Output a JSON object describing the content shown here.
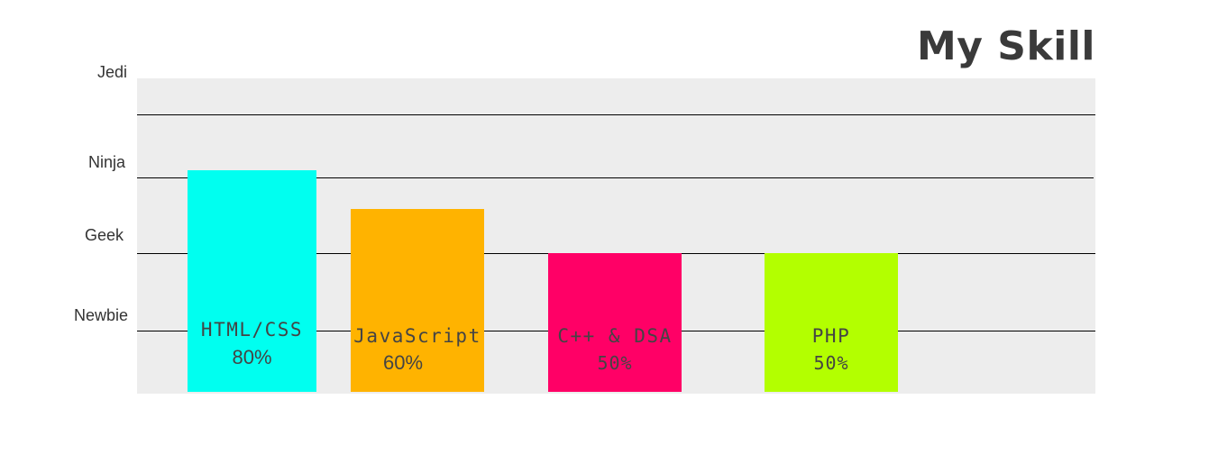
{
  "title": "My Skill",
  "chart_data": {
    "type": "bar",
    "title": "My Skill",
    "xlabel": "",
    "ylabel": "",
    "levels": [
      "Newbie",
      "Geek",
      "Ninja",
      "Jedi"
    ],
    "categories": [
      "HTML/CSS",
      "JavaScript",
      "C++ & DSA",
      "PHP"
    ],
    "values": [
      80,
      60,
      50,
      50
    ],
    "value_labels": [
      "80%",
      "60%",
      "50%",
      "50%"
    ],
    "ylim": [
      0,
      100
    ],
    "grid": true,
    "colors": [
      "#00fff0",
      "#ffb300",
      "#ff0066",
      "#b3ff00"
    ],
    "plot_background": "#ededed",
    "label_color": "#444444",
    "gridline_color": "#000000"
  }
}
